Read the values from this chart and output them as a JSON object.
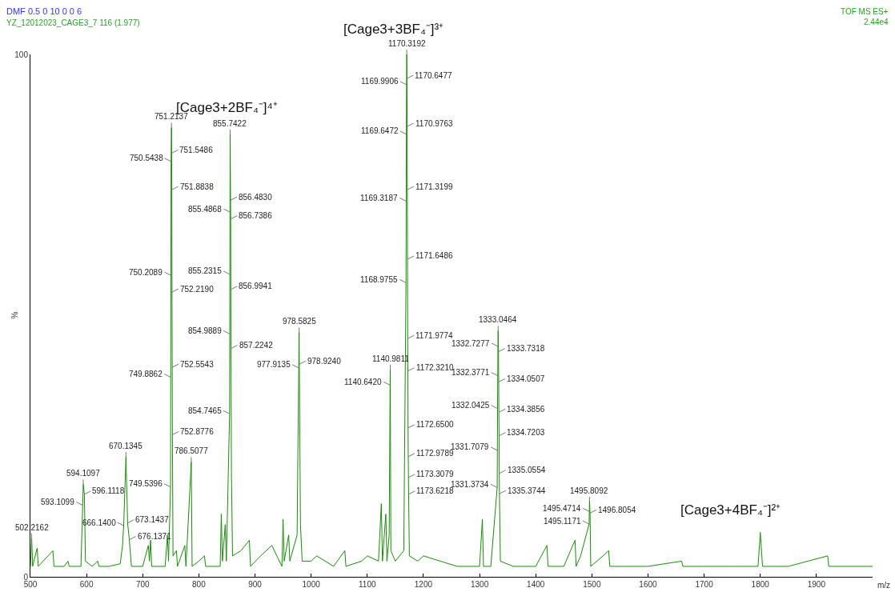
{
  "chart_data": {
    "type": "line",
    "title": "DMF 0.5 0 10 0 0 6",
    "subtitle": "YZ_12012023_CAGE3_7 116 (1.977)",
    "xlabel": "m/z",
    "ylabel": "%",
    "xlim": [
      500,
      2000
    ],
    "xticks": [
      500,
      600,
      700,
      800,
      900,
      1000,
      1100,
      1200,
      1300,
      1400,
      1500,
      1600,
      1700,
      1800,
      1900
    ],
    "ylim": [
      0,
      100
    ],
    "yticks": [
      0,
      100
    ],
    "grid": false,
    "marker": "none",
    "line_style": "solid",
    "series": [
      {
        "color": "#1a8a0a",
        "x": [
          500,
          502.2162,
          504,
          512,
          514,
          540,
          542,
          560,
          567,
          569,
          590,
          593.1099,
          594.1097,
          596.1118,
          598,
          610,
          620,
          622,
          640,
          660,
          664,
          666.14,
          670.1345,
          673.1437,
          676.1371,
          680,
          700,
          710,
          712,
          714,
          716,
          740,
          744,
          746,
          749.5396,
          749.8862,
          750.2089,
          750.5438,
          751.2137,
          751.5486,
          751.8838,
          752.219,
          752.5543,
          752.8776,
          754,
          760,
          762,
          775,
          777,
          786.5077,
          788,
          800,
          810,
          812,
          838,
          840,
          842,
          847,
          849,
          854.7465,
          854.9889,
          855.2315,
          855.4868,
          855.7422,
          856.483,
          856.7386,
          856.9941,
          857.2242,
          858,
          860,
          875,
          890,
          892,
          910,
          930,
          948,
          950,
          952,
          960,
          962,
          975,
          977.9135,
          978.5825,
          978.924,
          981,
          984,
          1000,
          1010,
          1040,
          1060,
          1062,
          1090,
          1100,
          1120,
          1125,
          1127,
          1133,
          1135,
          1139,
          1140.642,
          1140.9811,
          1142,
          1150,
          1165,
          1168.9755,
          1169.3187,
          1169.6472,
          1169.9906,
          1170.3192,
          1170.6477,
          1170.9763,
          1171.3199,
          1171.6486,
          1171.9774,
          1172.321,
          1172.65,
          1172.9789,
          1173.3079,
          1173.6218,
          1175,
          1190,
          1200,
          1230,
          1260,
          1300,
          1305,
          1307,
          1320,
          1331.3734,
          1331.7079,
          1332.0425,
          1332.3771,
          1332.7277,
          1333.0464,
          1333.7318,
          1334.0507,
          1334.3856,
          1334.7203,
          1335.0554,
          1335.3744,
          1337,
          1360,
          1400,
          1420,
          1422,
          1450,
          1470,
          1472,
          1480,
          1495.1171,
          1495.4714,
          1495.8092,
          1496.8054,
          1498,
          1520,
          1530,
          1532,
          1560,
          1600,
          1660,
          1662,
          1700,
          1750,
          1796,
          1800,
          1804,
          1850,
          1920,
          1922,
          1960,
          2000
        ],
        "values": [
          2,
          7.4,
          2,
          5.5,
          2,
          5,
          2,
          2,
          3,
          2,
          2,
          13.7,
          17.7,
          15.8,
          3,
          2,
          3,
          2,
          2,
          2.5,
          6,
          9.8,
          23,
          10.3,
          7.1,
          2,
          2,
          6,
          3,
          7,
          2,
          2,
          8,
          3,
          17.2,
          38.2,
          57.7,
          79.5,
          86,
          81.1,
          74.1,
          54.5,
          40.1,
          27.2,
          4,
          5,
          2,
          6,
          2,
          22,
          2,
          3,
          4,
          2,
          2,
          12,
          3,
          10,
          3,
          31.2,
          46.5,
          57.9,
          69.8,
          84.7,
          72.1,
          68.5,
          55,
          43.7,
          20,
          4,
          5,
          7,
          2,
          4,
          6,
          2,
          11,
          3,
          8,
          3,
          8,
          40,
          46.8,
          40.7,
          10,
          3,
          3,
          4,
          2,
          5,
          2,
          3,
          4,
          3,
          14,
          3,
          12,
          3,
          8,
          36.7,
          39.7,
          5,
          3,
          5,
          56.3,
          71.9,
          84.7,
          94.2,
          100,
          95.4,
          86.2,
          74.1,
          60.8,
          45.6,
          39.4,
          28.5,
          23,
          19,
          15.8,
          4,
          3,
          4,
          3,
          2,
          2,
          11,
          2,
          2,
          17.1,
          24.2,
          32.2,
          38.5,
          44.1,
          47.1,
          43.1,
          37.3,
          31.5,
          27,
          19.8,
          15.9,
          3,
          2,
          2,
          6,
          2,
          2,
          7,
          2,
          4,
          10.1,
          12.5,
          14.4,
          12.2,
          2,
          4,
          5,
          2,
          2,
          2,
          3,
          2,
          2,
          2,
          2,
          8.5,
          2,
          2,
          4,
          2,
          2,
          2
        ]
      }
    ],
    "annotations": [
      "TOF MS ES+",
      "2.44e4",
      "[Cage3+3BF₄⁻]³⁺",
      "[Cage3+2BF₄⁻]⁴⁺",
      "[Cage3+4BF₄⁻]²⁺",
      {
        "text": "502.2162",
        "x": 502.2162,
        "y": 7.4
      },
      {
        "text": "593.1099",
        "x": 593.1099,
        "y": 13.7
      },
      {
        "text": "594.1097",
        "x": 594.1097,
        "y": 17.7
      },
      {
        "text": "596.1118",
        "x": 596.1118,
        "y": 15.8
      },
      {
        "text": "666.1400",
        "x": 666.14,
        "y": 9.8
      },
      {
        "text": "670.1345",
        "x": 670.1345,
        "y": 23
      },
      {
        "text": "673.1437",
        "x": 673.1437,
        "y": 10.3
      },
      {
        "text": "676.1371",
        "x": 676.1371,
        "y": 7.1
      },
      {
        "text": "749.5396",
        "x": 749.5396,
        "y": 17.2
      },
      {
        "text": "749.8862",
        "x": 749.8862,
        "y": 38.2
      },
      {
        "text": "750.2089",
        "x": 750.2089,
        "y": 57.7
      },
      {
        "text": "750.5438",
        "x": 750.5438,
        "y": 79.5
      },
      {
        "text": "751.2137",
        "x": 751.2137,
        "y": 86
      },
      {
        "text": "751.5486",
        "x": 751.5486,
        "y": 81.1
      },
      {
        "text": "751.8838",
        "x": 751.8838,
        "y": 74.1
      },
      {
        "text": "752.2190",
        "x": 752.219,
        "y": 54.5
      },
      {
        "text": "752.5543",
        "x": 752.5543,
        "y": 40.1
      },
      {
        "text": "752.8776",
        "x": 752.8776,
        "y": 27.2
      },
      {
        "text": "786.5077",
        "x": 786.5077,
        "y": 22
      },
      {
        "text": "854.7465",
        "x": 854.7465,
        "y": 31.2
      },
      {
        "text": "854.9889",
        "x": 854.9889,
        "y": 46.5
      },
      {
        "text": "855.2315",
        "x": 855.2315,
        "y": 57.9
      },
      {
        "text": "855.4868",
        "x": 855.4868,
        "y": 69.8
      },
      {
        "text": "855.7422",
        "x": 855.7422,
        "y": 84.7
      },
      {
        "text": "856.4830",
        "x": 856.483,
        "y": 72.1
      },
      {
        "text": "856.7386",
        "x": 856.7386,
        "y": 68.5
      },
      {
        "text": "856.9941",
        "x": 856.9941,
        "y": 55
      },
      {
        "text": "857.2242",
        "x": 857.2242,
        "y": 43.7
      },
      {
        "text": "977.9135",
        "x": 977.9135,
        "y": 40
      },
      {
        "text": "978.5825",
        "x": 978.5825,
        "y": 46.8
      },
      {
        "text": "978.9240",
        "x": 978.924,
        "y": 40.7
      },
      {
        "text": "1140.6420",
        "x": 1140.642,
        "y": 36.7
      },
      {
        "text": "1140.9811",
        "x": 1140.9811,
        "y": 39.7
      },
      {
        "text": "1168.9755",
        "x": 1168.9755,
        "y": 56.3
      },
      {
        "text": "1169.3187",
        "x": 1169.3187,
        "y": 71.9
      },
      {
        "text": "1169.6472",
        "x": 1169.6472,
        "y": 84.7
      },
      {
        "text": "1169.9906",
        "x": 1169.9906,
        "y": 94.2
      },
      {
        "text": "1170.3192",
        "x": 1170.3192,
        "y": 100
      },
      {
        "text": "1170.6477",
        "x": 1170.6477,
        "y": 95.4
      },
      {
        "text": "1170.9763",
        "x": 1170.9763,
        "y": 86.2
      },
      {
        "text": "1171.3199",
        "x": 1171.3199,
        "y": 74.1
      },
      {
        "text": "1171.6486",
        "x": 1171.6486,
        "y": 60.8
      },
      {
        "text": "1171.9774",
        "x": 1171.9774,
        "y": 45.6
      },
      {
        "text": "1172.3210",
        "x": 1172.321,
        "y": 39.4
      },
      {
        "text": "1172.6500",
        "x": 1172.65,
        "y": 28.5
      },
      {
        "text": "1172.9789",
        "x": 1172.9789,
        "y": 23
      },
      {
        "text": "1173.3079",
        "x": 1173.3079,
        "y": 19
      },
      {
        "text": "1173.6218",
        "x": 1173.6218,
        "y": 15.8
      },
      {
        "text": "1331.3734",
        "x": 1331.3734,
        "y": 17.1
      },
      {
        "text": "1331.7079",
        "x": 1331.7079,
        "y": 24.2
      },
      {
        "text": "1332.0425",
        "x": 1332.0425,
        "y": 32.2
      },
      {
        "text": "1332.3771",
        "x": 1332.3771,
        "y": 38.5
      },
      {
        "text": "1332.7277",
        "x": 1332.7277,
        "y": 44.1
      },
      {
        "text": "1333.0464",
        "x": 1333.0464,
        "y": 47.1
      },
      {
        "text": "1333.7318",
        "x": 1333.7318,
        "y": 43.1
      },
      {
        "text": "1334.0507",
        "x": 1334.0507,
        "y": 37.3
      },
      {
        "text": "1334.3856",
        "x": 1334.3856,
        "y": 31.5
      },
      {
        "text": "1334.7203",
        "x": 1334.7203,
        "y": 27
      },
      {
        "text": "1335.0554",
        "x": 1335.0554,
        "y": 19.8
      },
      {
        "text": "1335.3744",
        "x": 1335.3744,
        "y": 15.9
      },
      {
        "text": "1495.1171",
        "x": 1495.1171,
        "y": 10.1
      },
      {
        "text": "1495.4714",
        "x": 1495.4714,
        "y": 12.5
      },
      {
        "text": "1495.8092",
        "x": 1495.8092,
        "y": 14.4
      },
      {
        "text": "1496.8054",
        "x": 1496.8054,
        "y": 12.2
      }
    ]
  }
}
